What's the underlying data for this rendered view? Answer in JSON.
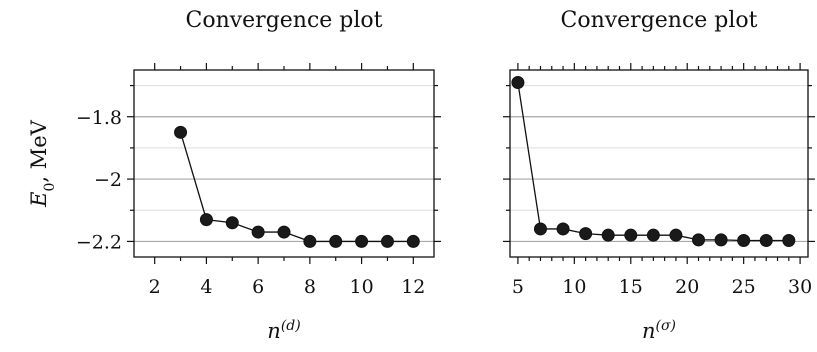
{
  "chart_data": [
    {
      "type": "line",
      "title": "Convergence plot",
      "xlabel": "n^(d)",
      "ylabel": "E_0, MeV",
      "xlim": [
        1.2,
        12.8
      ],
      "ylim": [
        -2.25,
        -1.65
      ],
      "xticks": [
        2,
        4,
        6,
        8,
        10,
        12
      ],
      "yticks": [
        -1.8,
        -2.0,
        -2.2
      ],
      "ytick_labels": [
        "−1.8",
        "−2",
        "−2.2"
      ],
      "grid": true,
      "series": [
        {
          "x": [
            3,
            4,
            5,
            6,
            7,
            8,
            9,
            10,
            11,
            12
          ],
          "values": [
            -1.85,
            -2.13,
            -2.14,
            -2.17,
            -2.17,
            -2.2,
            -2.2,
            -2.2,
            -2.2,
            -2.2
          ]
        }
      ]
    },
    {
      "type": "line",
      "title": "Convergence plot",
      "xlabel": "n^(σ)",
      "ylabel": "",
      "xlim": [
        4.3,
        30.7
      ],
      "ylim": [
        -2.25,
        -1.65
      ],
      "xticks": [
        5,
        10,
        15,
        20,
        25,
        30
      ],
      "yticks": [
        -1.8,
        -2.0,
        -2.2
      ],
      "ytick_labels": [
        "",
        "",
        ""
      ],
      "grid": true,
      "series": [
        {
          "x": [
            5,
            7,
            9,
            11,
            13,
            15,
            17,
            19,
            21,
            23,
            25,
            27,
            29
          ],
          "values": [
            -1.69,
            -2.16,
            -2.16,
            -2.175,
            -2.18,
            -2.18,
            -2.18,
            -2.18,
            -2.195,
            -2.195,
            -2.197,
            -2.197,
            -2.197
          ]
        }
      ]
    }
  ]
}
